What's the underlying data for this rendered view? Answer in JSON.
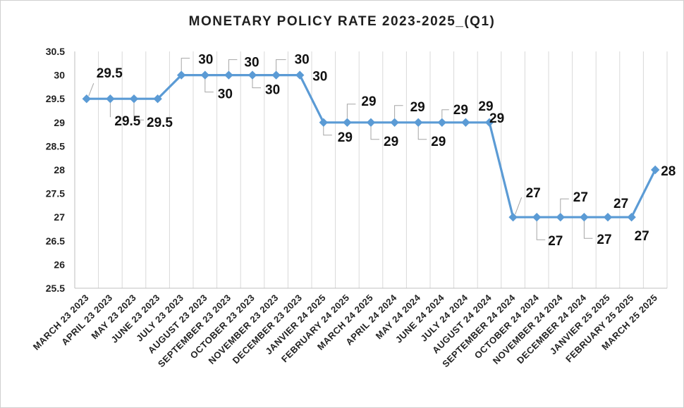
{
  "chart_data": {
    "type": "line",
    "title": "MONETARY POLICY RATE 2023-2025_(Q1)",
    "xlabel": "",
    "ylabel": "",
    "ylim": [
      25.5,
      30.5
    ],
    "yticks": [
      "25.5",
      "26",
      "26.5",
      "27",
      "27.5",
      "28",
      "28.5",
      "29",
      "29.5",
      "30",
      "30.5"
    ],
    "grid": "vertical",
    "legend": "none",
    "line_color": "#5b9bd5",
    "categories": [
      "MARCH 23 2023",
      "APRIL 23 2023",
      "MAY 23 2023",
      "JUNE 23 2023",
      "JULY 23 2023",
      "AUGUST 23 2023",
      "SEPTEMBER 23 2023",
      "OCTOBER 23 2023",
      "NOVEMBER 23 2023",
      "DECEMBER 23 2023",
      "JANVIER 24 2025",
      "FEBRUARY 24 2025",
      "MARCH 24 2025",
      "APRIL 24 2024",
      "MAY 24 2024",
      "JUNE 24 2024",
      "JULY 24 2024",
      "AUGUST 24 2024",
      "SEPTEMBER 24 2024",
      "OCTOBER 24 2024",
      "NOVEMBER 24 2024",
      "DECEMBER 24 2024",
      "JANVIER 25 2025",
      "FEBRUARY 25 2025",
      "MARCH 25 2025"
    ],
    "series": [
      {
        "name": "Monetary Policy Rate",
        "values": [
          29.5,
          29.5,
          29.5,
          29.5,
          30,
          30,
          30,
          30,
          30,
          30,
          29,
          29,
          29,
          29,
          29,
          29,
          29,
          29,
          27,
          27,
          27,
          27,
          27,
          27,
          28
        ],
        "labels": [
          "29.5",
          "29.5",
          "29.5",
          "",
          "30",
          "30",
          "30",
          "30",
          "30",
          "30",
          "29",
          "29",
          "29",
          "29",
          "29",
          "29",
          "29",
          "29",
          "27",
          "27",
          "27",
          "27",
          "27",
          "27",
          "28"
        ]
      }
    ]
  }
}
